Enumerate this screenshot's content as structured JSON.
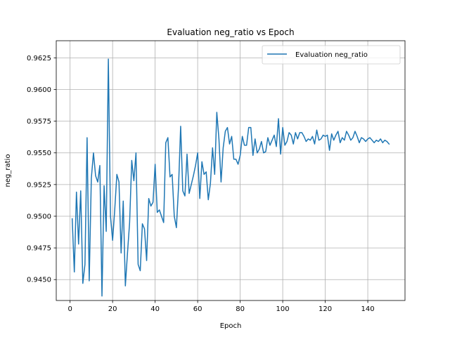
{
  "chart_data": {
    "type": "line",
    "title": "Evaluation neg_ratio vs Epoch",
    "xlabel": "Epoch",
    "ylabel": "neg_ratio",
    "xlim": [
      -6.5,
      157.5
    ],
    "ylim": [
      0.94335,
      0.96385
    ],
    "xticks": [
      0,
      20,
      40,
      60,
      80,
      100,
      120,
      140
    ],
    "yticks": [
      0.945,
      0.9475,
      0.95,
      0.9525,
      0.955,
      0.9575,
      0.96,
      0.9625
    ],
    "grid": true,
    "legend_position": "top-right",
    "colors": {
      "series": "#1f77b4",
      "grid": "#b0b0b0",
      "axis": "#000000"
    },
    "series": [
      {
        "name": "Evaluation neg_ratio",
        "x": [
          1,
          2,
          3,
          4,
          5,
          6,
          7,
          8,
          9,
          10,
          11,
          12,
          13,
          14,
          15,
          16,
          17,
          18,
          19,
          20,
          21,
          22,
          23,
          24,
          25,
          26,
          27,
          28,
          29,
          30,
          31,
          32,
          33,
          34,
          35,
          36,
          37,
          38,
          39,
          40,
          41,
          42,
          43,
          44,
          45,
          46,
          47,
          48,
          49,
          50,
          51,
          52,
          53,
          54,
          55,
          56,
          57,
          58,
          59,
          60,
          61,
          62,
          63,
          64,
          65,
          66,
          67,
          68,
          69,
          70,
          71,
          72,
          73,
          74,
          75,
          76,
          77,
          78,
          79,
          80,
          81,
          82,
          83,
          84,
          85,
          86,
          87,
          88,
          89,
          90,
          91,
          92,
          93,
          94,
          95,
          96,
          97,
          98,
          99,
          100,
          101,
          102,
          103,
          104,
          105,
          106,
          107,
          108,
          109,
          110,
          111,
          112,
          113,
          114,
          115,
          116,
          117,
          118,
          119,
          120,
          121,
          122,
          123,
          124,
          125,
          126,
          127,
          128,
          129,
          130,
          131,
          132,
          133,
          134,
          135,
          136,
          137,
          138,
          139,
          140,
          141,
          142,
          143,
          144,
          145,
          146,
          147,
          148,
          149,
          150
        ],
        "values": [
          0.9498,
          0.9456,
          0.9519,
          0.9478,
          0.952,
          0.9447,
          0.9462,
          0.9562,
          0.9449,
          0.953,
          0.955,
          0.9532,
          0.9527,
          0.954,
          0.9437,
          0.9524,
          0.9488,
          0.9624,
          0.95,
          0.9481,
          0.9505,
          0.9533,
          0.9527,
          0.9471,
          0.9512,
          0.9445,
          0.9471,
          0.9495,
          0.9544,
          0.9528,
          0.955,
          0.9462,
          0.9457,
          0.9494,
          0.949,
          0.9465,
          0.9514,
          0.9508,
          0.9511,
          0.9541,
          0.9503,
          0.9505,
          0.95,
          0.9495,
          0.9558,
          0.9562,
          0.9531,
          0.9533,
          0.95,
          0.9491,
          0.9523,
          0.9571,
          0.952,
          0.9516,
          0.9549,
          0.9518,
          0.9525,
          0.9532,
          0.954,
          0.955,
          0.9514,
          0.9543,
          0.9533,
          0.9535,
          0.9513,
          0.9526,
          0.9554,
          0.9533,
          0.9582,
          0.9561,
          0.9527,
          0.9554,
          0.9567,
          0.957,
          0.9557,
          0.9563,
          0.9545,
          0.9545,
          0.9541,
          0.9548,
          0.9563,
          0.9556,
          0.9556,
          0.957,
          0.957,
          0.9548,
          0.9561,
          0.955,
          0.9553,
          0.9559,
          0.955,
          0.9551,
          0.9562,
          0.9556,
          0.956,
          0.9564,
          0.9555,
          0.9577,
          0.9549,
          0.957,
          0.9556,
          0.9559,
          0.9566,
          0.9564,
          0.9557,
          0.9566,
          0.9561,
          0.9566,
          0.9566,
          0.9563,
          0.9559,
          0.9561,
          0.956,
          0.9563,
          0.9557,
          0.9568,
          0.956,
          0.9561,
          0.9564,
          0.9563,
          0.9564,
          0.9552,
          0.9565,
          0.956,
          0.9564,
          0.9567,
          0.9558,
          0.9562,
          0.956,
          0.9567,
          0.9564,
          0.956,
          0.9562,
          0.9567,
          0.9563,
          0.9558,
          0.9562,
          0.9561,
          0.9559,
          0.9561,
          0.9562,
          0.956,
          0.9558,
          0.956,
          0.9559,
          0.9561,
          0.9558,
          0.956,
          0.9559,
          0.9557
        ]
      }
    ]
  }
}
